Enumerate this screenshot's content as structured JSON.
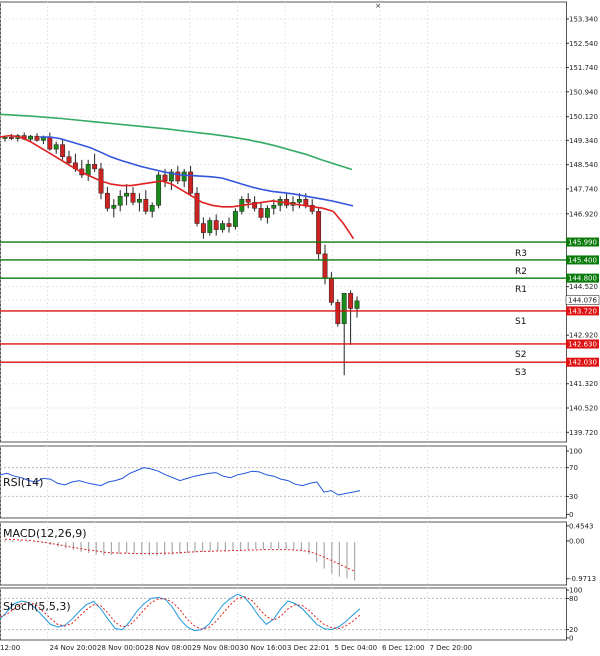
{
  "chart_data": {
    "type": "candlestick",
    "colors": {
      "up": "#1a8a1a",
      "down": "#cc2222",
      "ma_fast": "#e02020",
      "ma_mid": "#3355dd",
      "ma_slow": "#33aa66",
      "resistance": "#0a7a0a",
      "support": "#dd1111",
      "rsi": "#2255dd",
      "macd_signal": "#dd2222",
      "stoch_main": "#2299dd",
      "stoch_signal": "#dd2222",
      "grid": "#e6e6e6"
    },
    "price_ticks": [
      "153.340",
      "152.540",
      "151.740",
      "150.940",
      "150.120",
      "149.340",
      "148.540",
      "147.740",
      "146.920",
      "145.990",
      "145.400",
      "144.800",
      "144.520",
      "144.076",
      "143.720",
      "142.920",
      "142.630",
      "142.030",
      "141.320",
      "140.520",
      "139.720"
    ],
    "price_range": [
      139.4,
      153.9
    ],
    "x_labels": [
      "12:00",
      "24 Nov 20:00",
      "28 Nov 00:00",
      "28 Nov 08:00",
      "29 Nov 08:00",
      "30 Nov 16:00",
      "3 Dec 22:01",
      "5 Dec 04:00",
      "6 Dec 12:00",
      "7 Dec 20:00"
    ],
    "levels": [
      {
        "name": "R3",
        "value": 145.99,
        "kind": "resistance"
      },
      {
        "name": "R2",
        "value": 145.4,
        "kind": "resistance"
      },
      {
        "name": "R1",
        "value": 144.8,
        "kind": "resistance"
      },
      {
        "name": "S1",
        "value": 143.72,
        "kind": "support"
      },
      {
        "name": "S2",
        "value": 142.63,
        "kind": "support"
      },
      {
        "name": "S3",
        "value": 142.03,
        "kind": "support"
      }
    ],
    "current_price": "144.076",
    "candles": [
      [
        149.4,
        149.5,
        149.3,
        149.45
      ],
      [
        149.45,
        149.55,
        149.35,
        149.4
      ],
      [
        149.4,
        149.55,
        149.3,
        149.5
      ],
      [
        149.5,
        149.6,
        149.35,
        149.38
      ],
      [
        149.38,
        149.52,
        149.28,
        149.48
      ],
      [
        149.48,
        149.58,
        149.3,
        149.34
      ],
      [
        149.34,
        149.5,
        149.22,
        149.45
      ],
      [
        149.45,
        149.6,
        149.0,
        149.05
      ],
      [
        149.05,
        149.3,
        148.9,
        149.2
      ],
      [
        149.2,
        149.4,
        148.7,
        148.8
      ],
      [
        148.8,
        149.0,
        148.5,
        148.6
      ],
      [
        148.6,
        148.9,
        148.3,
        148.4
      ],
      [
        148.4,
        148.7,
        148.1,
        148.2
      ],
      [
        148.2,
        148.7,
        148.0,
        148.55
      ],
      [
        148.55,
        148.9,
        148.3,
        148.4
      ],
      [
        148.4,
        148.6,
        147.4,
        147.6
      ],
      [
        147.6,
        147.8,
        147.0,
        147.1
      ],
      [
        147.1,
        147.4,
        146.8,
        147.2
      ],
      [
        147.2,
        147.7,
        147.0,
        147.5
      ],
      [
        147.5,
        147.9,
        147.2,
        147.6
      ],
      [
        147.6,
        147.8,
        147.2,
        147.3
      ],
      [
        147.3,
        147.6,
        147.0,
        147.4
      ],
      [
        147.4,
        147.7,
        146.9,
        147.0
      ],
      [
        147.0,
        147.3,
        146.8,
        147.2
      ],
      [
        147.2,
        148.3,
        147.1,
        148.2
      ],
      [
        148.2,
        148.4,
        147.8,
        148.0
      ],
      [
        148.0,
        148.4,
        147.7,
        148.3
      ],
      [
        148.3,
        148.5,
        147.9,
        148.0
      ],
      [
        148.0,
        148.4,
        147.8,
        148.3
      ],
      [
        148.3,
        148.5,
        147.5,
        147.6
      ],
      [
        147.6,
        147.8,
        146.5,
        146.6
      ],
      [
        146.6,
        146.8,
        146.1,
        146.3
      ],
      [
        146.3,
        146.8,
        146.2,
        146.7
      ],
      [
        146.7,
        146.9,
        146.2,
        146.4
      ],
      [
        146.4,
        146.7,
        146.3,
        146.6
      ],
      [
        146.6,
        146.8,
        146.3,
        146.5
      ],
      [
        146.5,
        147.1,
        146.4,
        147.0
      ],
      [
        147.0,
        147.5,
        146.9,
        147.4
      ],
      [
        147.4,
        147.6,
        147.1,
        147.3
      ],
      [
        147.3,
        147.5,
        147.0,
        147.1
      ],
      [
        147.1,
        147.3,
        146.7,
        146.8
      ],
      [
        146.8,
        147.2,
        146.6,
        147.1
      ],
      [
        147.1,
        147.4,
        146.9,
        147.2
      ],
      [
        147.2,
        147.5,
        147.0,
        147.4
      ],
      [
        147.4,
        147.6,
        147.1,
        147.2
      ],
      [
        147.2,
        147.5,
        147.0,
        147.3
      ],
      [
        147.3,
        147.6,
        147.1,
        147.4
      ],
      [
        147.4,
        147.6,
        147.1,
        147.2
      ],
      [
        147.2,
        147.4,
        146.9,
        147.0
      ],
      [
        147.0,
        147.1,
        145.4,
        145.6
      ],
      [
        145.6,
        145.9,
        144.6,
        144.8
      ],
      [
        144.8,
        145.0,
        143.9,
        144.0
      ],
      [
        144.0,
        144.1,
        143.2,
        143.3
      ],
      [
        143.3,
        144.3,
        141.6,
        144.3
      ],
      [
        144.3,
        144.4,
        142.6,
        143.8
      ],
      [
        143.8,
        144.2,
        143.5,
        144.05
      ]
    ],
    "ma_fast": [
      149.45,
      149.5,
      149.45,
      149.3,
      149.1,
      148.9,
      148.7,
      148.5,
      148.3,
      148.15,
      148.0,
      147.9,
      147.85,
      147.85,
      147.9,
      147.95,
      148.0,
      147.9,
      147.7,
      147.5,
      147.3,
      147.2,
      147.15,
      147.15,
      147.2,
      147.25,
      147.3,
      147.35,
      147.3,
      147.25,
      147.2,
      147.15,
      147.1,
      147.0,
      146.6,
      146.1
    ],
    "ma_mid": [
      149.45,
      149.45,
      149.4,
      149.3,
      149.2,
      149.1,
      148.95,
      148.8,
      148.68,
      148.58,
      148.48,
      148.4,
      148.32,
      148.25,
      148.2,
      148.18,
      148.16,
      148.14,
      148.1,
      148.0,
      147.9,
      147.8,
      147.72,
      147.66,
      147.62,
      147.58,
      147.52,
      147.46,
      147.4,
      147.34,
      147.26,
      147.18
    ],
    "ma_slow": [
      150.2,
      150.17,
      150.14,
      150.1,
      150.06,
      150.01,
      149.96,
      149.91,
      149.86,
      149.81,
      149.76,
      149.71,
      149.65,
      149.59,
      149.53,
      149.46,
      149.38,
      149.28,
      149.16,
      149.02,
      148.88,
      148.7,
      148.54,
      148.38
    ],
    "rsi": {
      "label": "RSI(14)",
      "ticks": [
        "100",
        "70",
        "30",
        "0"
      ],
      "values": [
        60,
        62,
        58,
        56,
        52,
        50,
        55,
        54,
        48,
        46,
        50,
        52,
        49,
        47,
        45,
        50,
        52,
        55,
        62,
        66,
        70,
        68,
        65,
        60,
        56,
        52,
        55,
        58,
        60,
        62,
        63,
        58,
        56,
        60,
        62,
        65,
        64,
        60,
        58,
        54,
        52,
        47,
        45,
        48,
        50,
        36,
        38,
        32,
        34,
        36,
        38
      ]
    },
    "macd": {
      "label": "MACD(12,26,9)",
      "ticks": [
        "0.4543",
        "0.00",
        "-0.9713"
      ],
      "hist": [
        0.04,
        0.04,
        0.04,
        0.03,
        0.01,
        -0.02,
        -0.06,
        -0.1,
        -0.14,
        -0.18,
        -0.22,
        -0.25,
        -0.28,
        -0.3,
        -0.29,
        -0.27,
        -0.25,
        -0.26,
        -0.28,
        -0.3,
        -0.31,
        -0.3,
        -0.29,
        -0.27,
        -0.25,
        -0.23,
        -0.22,
        -0.21,
        -0.2,
        -0.2,
        -0.19,
        -0.18,
        -0.17,
        -0.16,
        -0.16,
        -0.16,
        -0.16,
        -0.16,
        -0.17,
        -0.18,
        -0.28,
        -0.45,
        -0.6,
        -0.72,
        -0.78,
        -0.82,
        -0.87
      ],
      "signal": [
        0.06,
        0.06,
        0.05,
        0.04,
        0.02,
        0.0,
        -0.03,
        -0.06,
        -0.09,
        -0.12,
        -0.15,
        -0.18,
        -0.2,
        -0.23,
        -0.24,
        -0.25,
        -0.25,
        -0.26,
        -0.26,
        -0.26,
        -0.26,
        -0.25,
        -0.25,
        -0.24,
        -0.23,
        -0.22,
        -0.21,
        -0.21,
        -0.2,
        -0.2,
        -0.19,
        -0.19,
        -0.18,
        -0.18,
        -0.17,
        -0.17,
        -0.17,
        -0.17,
        -0.18,
        -0.19,
        -0.21,
        -0.27,
        -0.34,
        -0.42,
        -0.5,
        -0.58,
        -0.66
      ]
    },
    "stoch": {
      "label": "Stoch(5,5,3)",
      "ticks": [
        "100",
        "80",
        "20",
        "0"
      ],
      "main": [
        40,
        55,
        70,
        75,
        72,
        60,
        45,
        30,
        25,
        28,
        40,
        55,
        68,
        74,
        60,
        40,
        22,
        20,
        35,
        55,
        70,
        80,
        82,
        78,
        62,
        40,
        25,
        18,
        20,
        30,
        50,
        68,
        80,
        88,
        82,
        65,
        45,
        30,
        40,
        60,
        75,
        70,
        60,
        45,
        30,
        22,
        20,
        25,
        35,
        48,
        60
      ],
      "signal": [
        45,
        50,
        60,
        70,
        72,
        68,
        55,
        42,
        30,
        27,
        32,
        45,
        58,
        68,
        66,
        52,
        34,
        25,
        28,
        42,
        58,
        72,
        79,
        79,
        72,
        58,
        40,
        27,
        21,
        24,
        36,
        52,
        68,
        80,
        83,
        76,
        60,
        45,
        38,
        46,
        60,
        68,
        66,
        56,
        42,
        30,
        24,
        22,
        27,
        36,
        48
      ]
    }
  }
}
